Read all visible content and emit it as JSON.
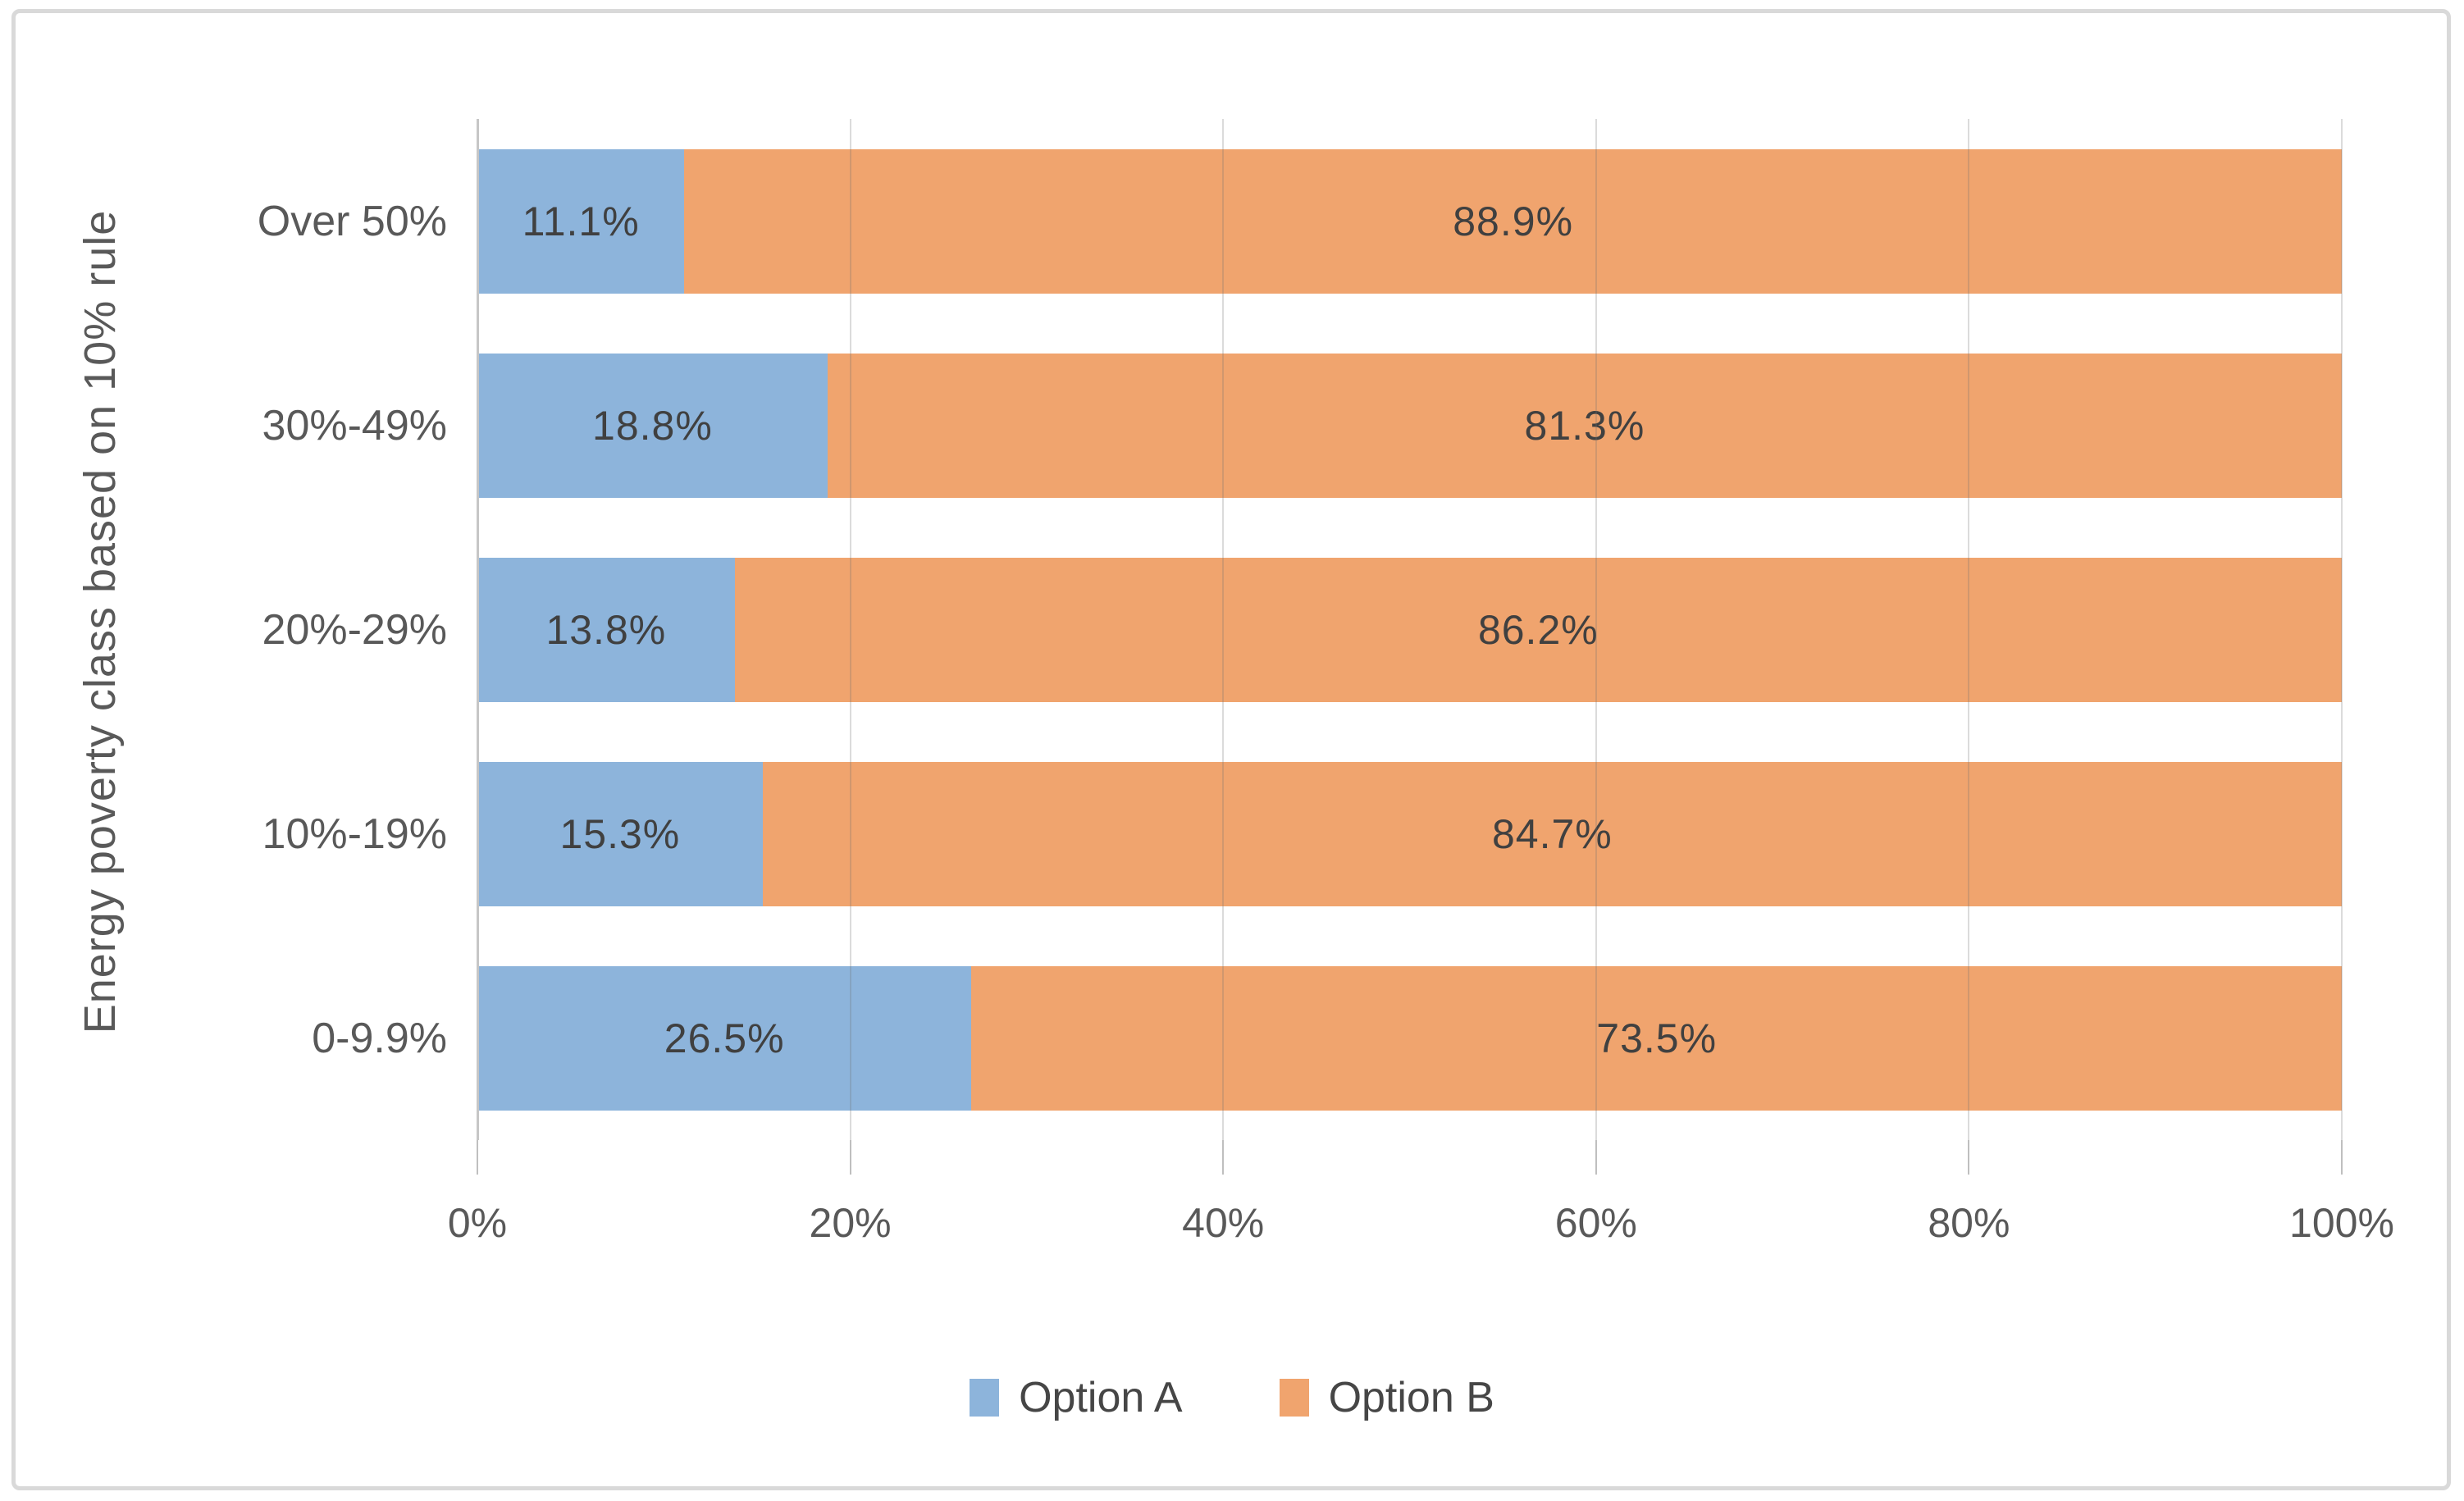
{
  "chart_data": {
    "type": "bar",
    "orientation": "horizontal",
    "stacked_100_percent": true,
    "title": "",
    "xlabel": "",
    "ylabel": "Energy poverty class based on 10% rule",
    "categories": [
      "Over 50%",
      "30%-49%",
      "20%-29%",
      "10%-19%",
      "0-9.9%"
    ],
    "series": [
      {
        "name": "Option A",
        "color": "#8db4db",
        "values": [
          11.1,
          18.8,
          13.8,
          15.3,
          26.5
        ],
        "data_labels": [
          "11.1%",
          "18.8%",
          "13.8%",
          "15.3%",
          "26.5%"
        ]
      },
      {
        "name": "Option B",
        "color": "#f0a46e",
        "values": [
          88.9,
          81.3,
          86.2,
          84.7,
          73.5
        ],
        "data_labels": [
          "88.9%",
          "81.3%",
          "86.2%",
          "84.7%",
          "73.5%"
        ]
      }
    ],
    "x_ticks": [
      "0%",
      "20%",
      "40%",
      "60%",
      "80%",
      "100%"
    ],
    "x_tick_values": [
      0,
      20,
      40,
      60,
      80,
      100
    ],
    "xlim": [
      0,
      100
    ],
    "grid": true,
    "legend_position": "bottom"
  },
  "styles": {
    "data_label_color": "#404040",
    "axis_text_color": "#595959",
    "legend_text_color": "#464646",
    "gridline_color": "#d9d9d9",
    "axis_line_color": "#c6c6c6",
    "frame_border_color": "#d9d9d9",
    "background_color": "#ffffff"
  }
}
